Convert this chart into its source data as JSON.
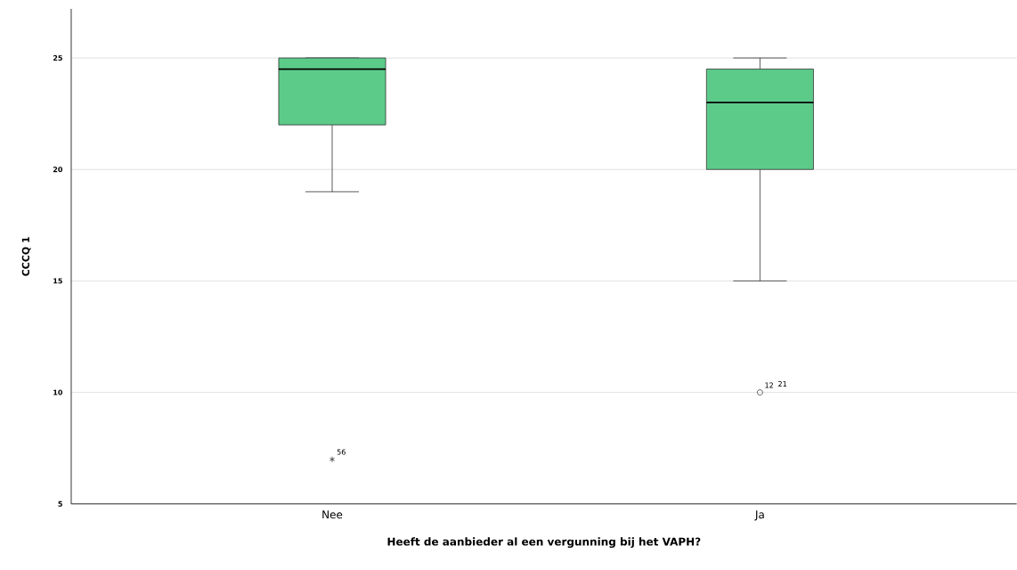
{
  "chart_data": {
    "type": "box",
    "xlabel": "Heeft de aanbieder al een vergunning bij het VAPH?",
    "ylabel": "CCCQ 1",
    "categories": [
      "Nee",
      "Ja"
    ],
    "color": "#5ccb8a",
    "ylim": [
      5,
      27.2
    ],
    "yticks": [
      5,
      10,
      15,
      20,
      25
    ],
    "grid": "y",
    "boxes": [
      {
        "low": 19,
        "q1": 22,
        "median": 24.5,
        "q3": 25,
        "high": 25,
        "outliers": [
          7
        ]
      },
      {
        "low": 15,
        "q1": 20,
        "median": 23,
        "q3": 24.5,
        "high": 25,
        "outliers": [
          10
        ]
      }
    ],
    "annotations": [
      "56",
      "12",
      "21"
    ]
  }
}
